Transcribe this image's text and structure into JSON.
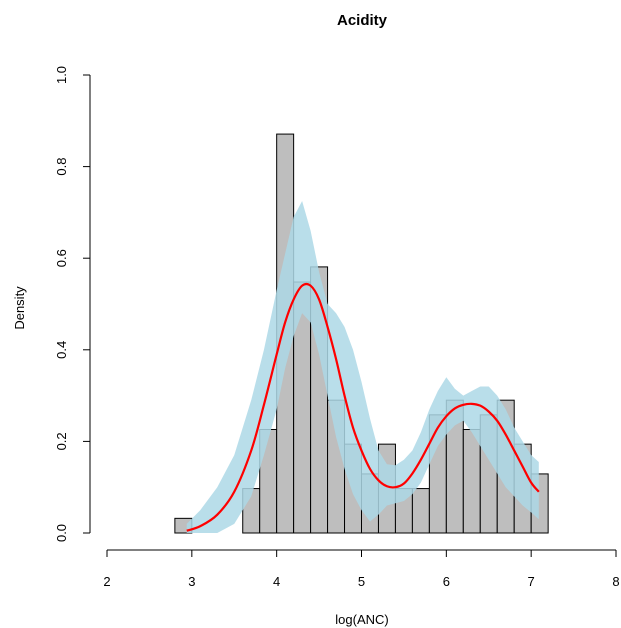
{
  "chart_data": {
    "type": "bar",
    "title": "Acidity",
    "xlabel": "log(ANC)",
    "ylabel": "Density",
    "xlim": [
      2,
      8
    ],
    "ylim": [
      0,
      1.0
    ],
    "xticks": [
      "2",
      "3",
      "4",
      "5",
      "6",
      "7",
      "8"
    ],
    "yticks": [
      "0.0",
      "0.2",
      "0.4",
      "0.6",
      "0.8",
      "1.0"
    ],
    "histogram": {
      "bin_width": 0.2,
      "bins": [
        {
          "start": 2.8,
          "end": 3.0,
          "density": 0.032
        },
        {
          "start": 3.0,
          "end": 3.2,
          "density": 0.0
        },
        {
          "start": 3.2,
          "end": 3.4,
          "density": 0.0
        },
        {
          "start": 3.4,
          "end": 3.6,
          "density": 0.0
        },
        {
          "start": 3.6,
          "end": 3.8,
          "density": 0.097
        },
        {
          "start": 3.8,
          "end": 4.0,
          "density": 0.226
        },
        {
          "start": 4.0,
          "end": 4.2,
          "density": 0.871
        },
        {
          "start": 4.2,
          "end": 4.4,
          "density": 0.548
        },
        {
          "start": 4.4,
          "end": 4.6,
          "density": 0.581
        },
        {
          "start": 4.6,
          "end": 4.8,
          "density": 0.29
        },
        {
          "start": 4.8,
          "end": 5.0,
          "density": 0.194
        },
        {
          "start": 5.0,
          "end": 5.2,
          "density": 0.129
        },
        {
          "start": 5.2,
          "end": 5.4,
          "density": 0.194
        },
        {
          "start": 5.4,
          "end": 5.6,
          "density": 0.097
        },
        {
          "start": 5.6,
          "end": 5.8,
          "density": 0.097
        },
        {
          "start": 5.8,
          "end": 6.0,
          "density": 0.258
        },
        {
          "start": 6.0,
          "end": 6.2,
          "density": 0.29
        },
        {
          "start": 6.2,
          "end": 6.4,
          "density": 0.226
        },
        {
          "start": 6.4,
          "end": 6.6,
          "density": 0.258
        },
        {
          "start": 6.6,
          "end": 6.8,
          "density": 0.29
        },
        {
          "start": 6.8,
          "end": 7.0,
          "density": 0.194
        },
        {
          "start": 7.0,
          "end": 7.2,
          "density": 0.129
        }
      ]
    },
    "density_curve": {
      "color": "#ff0000",
      "x": [
        2.94,
        3.1,
        3.3,
        3.5,
        3.7,
        3.85,
        4.0,
        4.1,
        4.2,
        4.3,
        4.4,
        4.5,
        4.6,
        4.7,
        4.8,
        4.9,
        5.0,
        5.1,
        5.2,
        5.3,
        5.4,
        5.5,
        5.6,
        5.7,
        5.8,
        5.9,
        6.0,
        6.1,
        6.2,
        6.3,
        6.4,
        6.5,
        6.6,
        6.7,
        6.8,
        6.9,
        7.0,
        7.09
      ],
      "y": [
        0.005,
        0.015,
        0.04,
        0.09,
        0.18,
        0.28,
        0.39,
        0.46,
        0.51,
        0.54,
        0.54,
        0.51,
        0.45,
        0.38,
        0.3,
        0.23,
        0.18,
        0.14,
        0.115,
        0.102,
        0.1,
        0.108,
        0.13,
        0.16,
        0.195,
        0.23,
        0.255,
        0.272,
        0.28,
        0.282,
        0.278,
        0.265,
        0.245,
        0.215,
        0.18,
        0.145,
        0.11,
        0.09
      ]
    },
    "confidence_band": {
      "color": "#add8e6",
      "x": [
        2.94,
        3.1,
        3.3,
        3.5,
        3.7,
        3.85,
        4.0,
        4.1,
        4.2,
        4.3,
        4.4,
        4.5,
        4.6,
        4.7,
        4.8,
        4.9,
        5.0,
        5.1,
        5.2,
        5.3,
        5.4,
        5.5,
        5.6,
        5.7,
        5.8,
        5.9,
        6.0,
        6.1,
        6.2,
        6.3,
        6.4,
        6.5,
        6.6,
        6.7,
        6.8,
        6.9,
        7.0,
        7.09
      ],
      "lower": [
        0.0,
        0.0,
        0.0,
        0.02,
        0.08,
        0.17,
        0.27,
        0.36,
        0.43,
        0.48,
        0.46,
        0.39,
        0.3,
        0.21,
        0.14,
        0.085,
        0.05,
        0.025,
        0.04,
        0.06,
        0.065,
        0.07,
        0.085,
        0.11,
        0.15,
        0.19,
        0.215,
        0.235,
        0.245,
        0.22,
        0.19,
        0.16,
        0.13,
        0.1,
        0.08,
        0.06,
        0.045,
        0.03
      ],
      "upper": [
        0.02,
        0.05,
        0.1,
        0.17,
        0.29,
        0.4,
        0.53,
        0.61,
        0.69,
        0.725,
        0.66,
        0.57,
        0.5,
        0.48,
        0.45,
        0.4,
        0.33,
        0.25,
        0.18,
        0.15,
        0.148,
        0.16,
        0.18,
        0.22,
        0.27,
        0.31,
        0.34,
        0.315,
        0.3,
        0.31,
        0.32,
        0.32,
        0.3,
        0.27,
        0.23,
        0.2,
        0.17,
        0.155
      ]
    }
  }
}
